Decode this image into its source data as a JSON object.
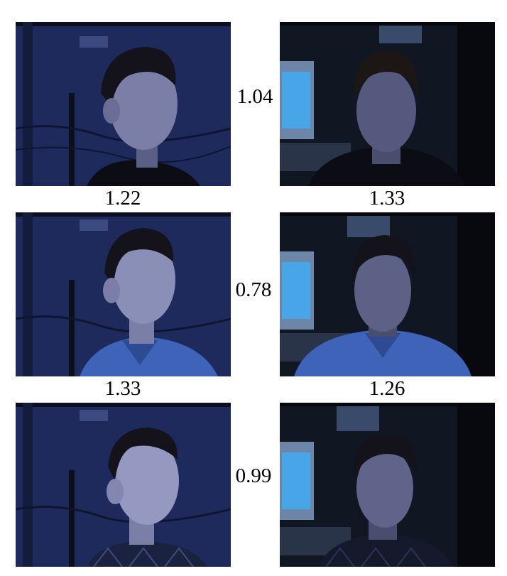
{
  "rows": [
    {
      "between": "1.04",
      "left_caption": "1.22",
      "right_caption": "1.33"
    },
    {
      "between": "0.78",
      "left_caption": "1.33",
      "right_caption": "1.26"
    },
    {
      "between": "0.99"
    }
  ],
  "colors": {
    "background_left": "#1e2a5c",
    "background_right": "#101622",
    "monitor_screen": "#48a6e8",
    "skin_lit": "#8a8fb8",
    "hair": "#14131c",
    "shirt_blue": "#3e63b8",
    "jacket_dark": "#0c0d14"
  }
}
